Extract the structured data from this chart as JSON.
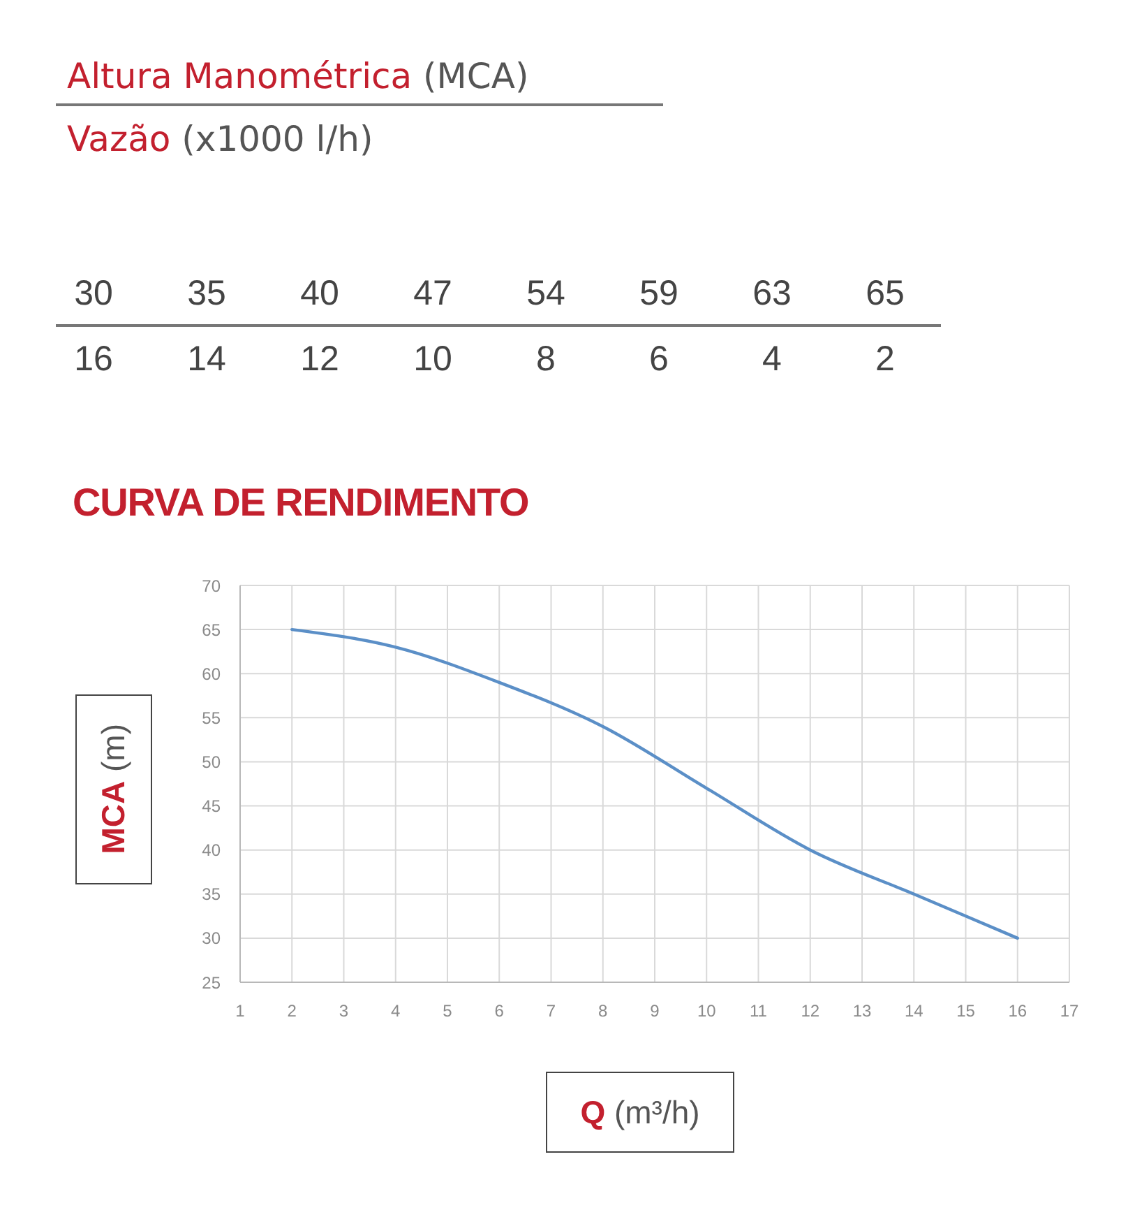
{
  "chart_data": [
    {
      "type": "heatmap",
      "annotations": [
        "Altura Manométrica (MCA)",
        "Vazão (x1000 l/h)"
      ],
      "categories": [
        "16",
        "14",
        "12",
        "10",
        "8",
        "6",
        "4",
        "2"
      ],
      "y_categories": [
        null
      ],
      "cells": [
        [
          30,
          35,
          40,
          47,
          54,
          59,
          63,
          65
        ]
      ],
      "data_labels": true
    },
    {
      "type": "line",
      "title": "CURVA DE RENDIMENTO",
      "xlabel": "Q (m³/h)",
      "ylabel": "MCA (m)",
      "x": [
        2,
        4,
        6,
        8,
        10,
        12,
        14,
        16
      ],
      "series": [
        {
          "color": "#5b8fc7",
          "values": [
            65,
            63,
            59,
            54,
            47,
            40,
            35,
            30
          ]
        }
      ],
      "xlim": [
        1,
        17
      ],
      "xticks": [
        1,
        2,
        3,
        4,
        5,
        6,
        7,
        8,
        9,
        10,
        11,
        12,
        13,
        14,
        15,
        16,
        17
      ],
      "ylim": [
        25,
        70
      ],
      "yticks": [
        25,
        30,
        35,
        40,
        45,
        50,
        55,
        60,
        65,
        70
      ],
      "grid": true,
      "marker": "none",
      "line_style": "solid"
    }
  ]
}
